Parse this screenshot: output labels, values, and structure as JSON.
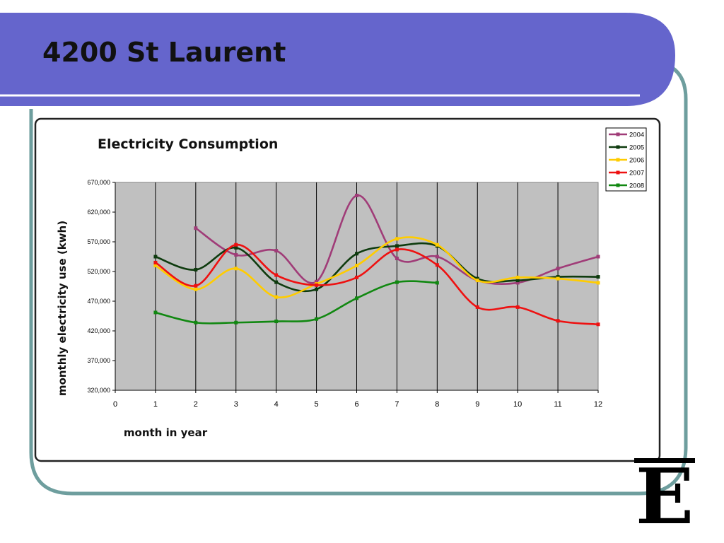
{
  "slide": {
    "title": "4200 St Laurent",
    "logo_text": "E"
  },
  "colors": {
    "banner": "#6565CC",
    "frame": "#6E9E9E",
    "plot_bg": "#C0C0C0",
    "panel_border": "#222222"
  },
  "chart_data": {
    "type": "line",
    "title": "Electricity Consumption",
    "xlabel": "month in year",
    "ylabel": "monthly electricity use (kwh)",
    "xlim": [
      0,
      12
    ],
    "ylim": [
      320000,
      670000
    ],
    "x_ticks": [
      "0",
      "1",
      "2",
      "3",
      "4",
      "5",
      "6",
      "7",
      "8",
      "9",
      "10",
      "11",
      "12"
    ],
    "y_ticks": [
      "320,000",
      "370,000",
      "420,000",
      "470,000",
      "520,000",
      "570,000",
      "620,000",
      "670,000"
    ],
    "grid": "vertical",
    "legend_position": "top-right",
    "smooth": true,
    "series": [
      {
        "name": "2004",
        "color": "#A03C78",
        "x": [
          2,
          3,
          4,
          5,
          6,
          7,
          8,
          9,
          10,
          11,
          12
        ],
        "y": [
          593000,
          548000,
          555000,
          503000,
          648000,
          542000,
          545000,
          505000,
          501000,
          525000,
          545000
        ]
      },
      {
        "name": "2005",
        "color": "#0E3B0E",
        "x": [
          1,
          2,
          3,
          4,
          5,
          6,
          7,
          8,
          9,
          10,
          11,
          12
        ],
        "y": [
          545000,
          523000,
          560000,
          502000,
          490000,
          550000,
          563000,
          563000,
          508000,
          505000,
          511000,
          511000
        ]
      },
      {
        "name": "2006",
        "color": "#FFCC00",
        "x": [
          1,
          2,
          3,
          4,
          5,
          6,
          7,
          8,
          9,
          10,
          11,
          12
        ],
        "y": [
          530000,
          490000,
          525000,
          477000,
          499000,
          530000,
          575000,
          565000,
          505000,
          510000,
          508000,
          501000
        ]
      },
      {
        "name": "2007",
        "color": "#EE1111",
        "x": [
          1,
          2,
          3,
          4,
          5,
          6,
          7,
          8,
          9,
          10,
          11,
          12
        ],
        "y": [
          535000,
          496000,
          565000,
          514000,
          497000,
          510000,
          557000,
          531000,
          460000,
          460000,
          437000,
          431000
        ]
      },
      {
        "name": "2008",
        "color": "#118811",
        "x": [
          1,
          2,
          3,
          4,
          5,
          6,
          7,
          8
        ],
        "y": [
          451000,
          434000,
          434000,
          436000,
          440000,
          475000,
          502000,
          501000
        ]
      }
    ]
  }
}
